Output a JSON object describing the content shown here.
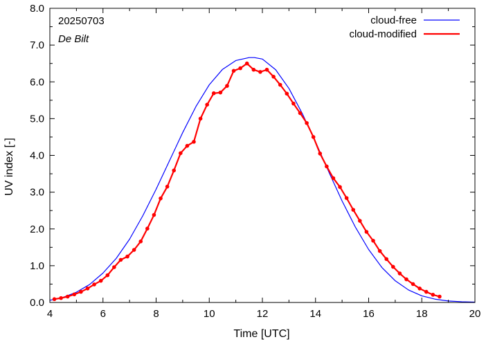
{
  "chart_data": {
    "type": "line",
    "xlabel": "Time  [UTC]",
    "ylabel": "UV index  [-]",
    "xlim": [
      4,
      20
    ],
    "ylim": [
      0,
      8
    ],
    "x_ticks": [
      4,
      6,
      8,
      10,
      12,
      14,
      16,
      18,
      20
    ],
    "x_tick_labels": [
      "4",
      "6",
      "8",
      "10",
      "12",
      "14",
      "16",
      "18",
      "20"
    ],
    "y_ticks": [
      0,
      1,
      2,
      3,
      4,
      5,
      6,
      7,
      8
    ],
    "y_tick_labels": [
      "0.0",
      "1.0",
      "2.0",
      "3.0",
      "4.0",
      "5.0",
      "6.0",
      "7.0",
      "8.0"
    ],
    "grid": false,
    "legend_position": "top-right",
    "annotations": [
      "20250703",
      "De Bilt"
    ],
    "colors": {
      "cloud_free": "#0000ff",
      "cloud_modified": "#ff0000"
    },
    "series": [
      {
        "name": "cloud-free",
        "x": [
          4.0,
          4.5,
          5.0,
          5.5,
          6.0,
          6.5,
          7.0,
          7.5,
          8.0,
          8.5,
          9.0,
          9.5,
          10.0,
          10.5,
          11.0,
          11.5,
          11.7,
          12.0,
          12.5,
          13.0,
          13.5,
          14.0,
          14.5,
          15.0,
          15.5,
          16.0,
          16.5,
          17.0,
          17.5,
          18.0,
          18.5,
          19.0,
          19.5,
          20.0
        ],
        "y": [
          0.06,
          0.14,
          0.28,
          0.49,
          0.8,
          1.2,
          1.72,
          2.36,
          3.08,
          3.85,
          4.62,
          5.33,
          5.92,
          6.34,
          6.58,
          6.66,
          6.66,
          6.62,
          6.33,
          5.82,
          5.14,
          4.37,
          3.55,
          2.76,
          2.05,
          1.44,
          0.95,
          0.59,
          0.34,
          0.18,
          0.09,
          0.04,
          0.02,
          0.01
        ]
      },
      {
        "name": "cloud-modified",
        "x": [
          4.17,
          4.42,
          4.67,
          4.92,
          5.17,
          5.42,
          5.67,
          5.92,
          6.17,
          6.42,
          6.67,
          6.92,
          7.17,
          7.42,
          7.67,
          7.92,
          8.17,
          8.42,
          8.67,
          8.92,
          9.17,
          9.42,
          9.67,
          9.92,
          10.17,
          10.42,
          10.67,
          10.92,
          11.17,
          11.42,
          11.67,
          11.92,
          12.17,
          12.42,
          12.67,
          12.92,
          13.17,
          13.42,
          13.67,
          13.92,
          14.17,
          14.42,
          14.67,
          14.92,
          15.17,
          15.42,
          15.67,
          15.92,
          16.17,
          16.42,
          16.67,
          16.92,
          17.17,
          17.42,
          17.67,
          17.92,
          18.17,
          18.42,
          18.67
        ],
        "y": [
          0.09,
          0.12,
          0.16,
          0.22,
          0.29,
          0.38,
          0.49,
          0.59,
          0.74,
          0.96,
          1.16,
          1.25,
          1.43,
          1.66,
          2.01,
          2.38,
          2.83,
          3.15,
          3.59,
          4.06,
          4.26,
          4.37,
          5.0,
          5.38,
          5.69,
          5.71,
          5.89,
          6.3,
          6.37,
          6.5,
          6.33,
          6.27,
          6.33,
          6.14,
          5.92,
          5.68,
          5.41,
          5.15,
          4.88,
          4.5,
          4.05,
          3.7,
          3.38,
          3.14,
          2.84,
          2.52,
          2.22,
          1.92,
          1.68,
          1.4,
          1.18,
          0.97,
          0.79,
          0.63,
          0.5,
          0.38,
          0.29,
          0.21,
          0.16
        ]
      }
    ]
  }
}
